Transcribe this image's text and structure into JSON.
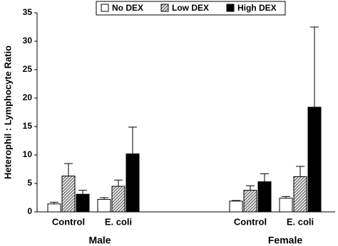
{
  "chart_data": {
    "type": "bar",
    "y_label": "Heterophil : Lymphocyte Ratio",
    "groups": [
      {
        "label": "Male",
        "categories": [
          "Control",
          "E. coli"
        ]
      },
      {
        "label": "Female",
        "categories": [
          "Control",
          "E. coli"
        ]
      }
    ],
    "series": [
      {
        "name": "No DEX",
        "color": "#ffffff",
        "values": [
          1.4,
          2.2,
          1.9,
          2.4
        ],
        "errors": [
          0.3,
          0.3,
          0.1,
          0.3
        ]
      },
      {
        "name": "Low DEX",
        "color": "#8c8c8c",
        "pattern": "hatch",
        "values": [
          6.3,
          4.5,
          3.8,
          6.2
        ],
        "errors": [
          2.2,
          1.1,
          0.8,
          1.8
        ]
      },
      {
        "name": "High DEX",
        "color": "#000000",
        "values": [
          3.1,
          10.2,
          5.3,
          18.4
        ],
        "errors": [
          0.7,
          4.7,
          1.4,
          14.1
        ]
      }
    ],
    "ylim": [
      0,
      35
    ],
    "yticks": [
      0,
      5,
      10,
      15,
      20,
      25,
      30,
      35
    ],
    "grid": false,
    "legend": "top"
  }
}
